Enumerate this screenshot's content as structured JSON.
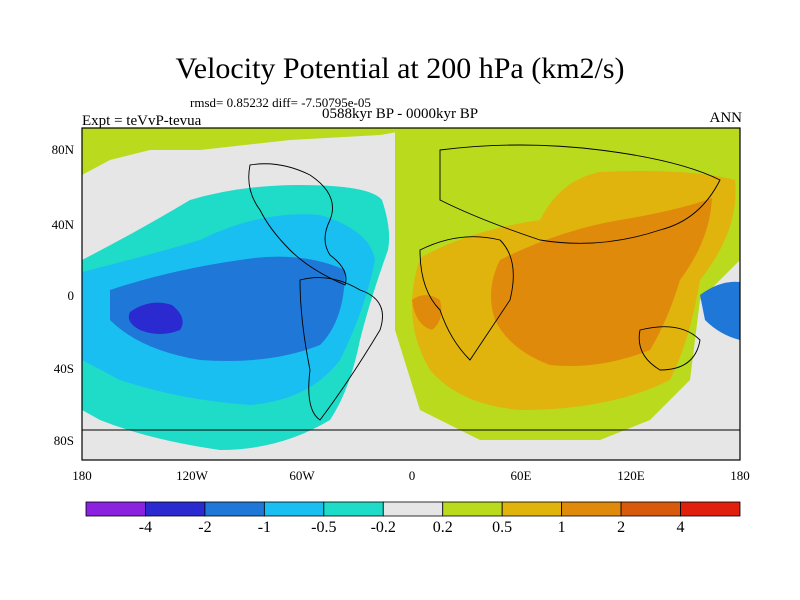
{
  "title": "Velocity Potential at 200 hPa (km2/s)",
  "stats": "rmsd= 0.85232 diff= -7.50795e-05",
  "period": "0588kyr BP - 0000kyr BP",
  "experiment": "Expt = teVvP-tevua",
  "season": "ANN",
  "lat_ticks": [
    "80N",
    "40N",
    "0",
    "40S",
    "80S"
  ],
  "lon_ticks": [
    "180",
    "120W",
    "60W",
    "0",
    "60E",
    "120E",
    "180"
  ],
  "colorbar": {
    "colors": [
      "#8a22e0",
      "#2a2ad0",
      "#1f78d8",
      "#19bff0",
      "#1fdcc8",
      "#e6e6e6",
      "#bada1e",
      "#e0b40c",
      "#e08a0c",
      "#d85a0c",
      "#e0200c"
    ],
    "labels": [
      "-4",
      "-2",
      "-1",
      "-0.5",
      "-0.2",
      "0.2",
      "0.5",
      "1",
      "2",
      "4"
    ]
  }
}
